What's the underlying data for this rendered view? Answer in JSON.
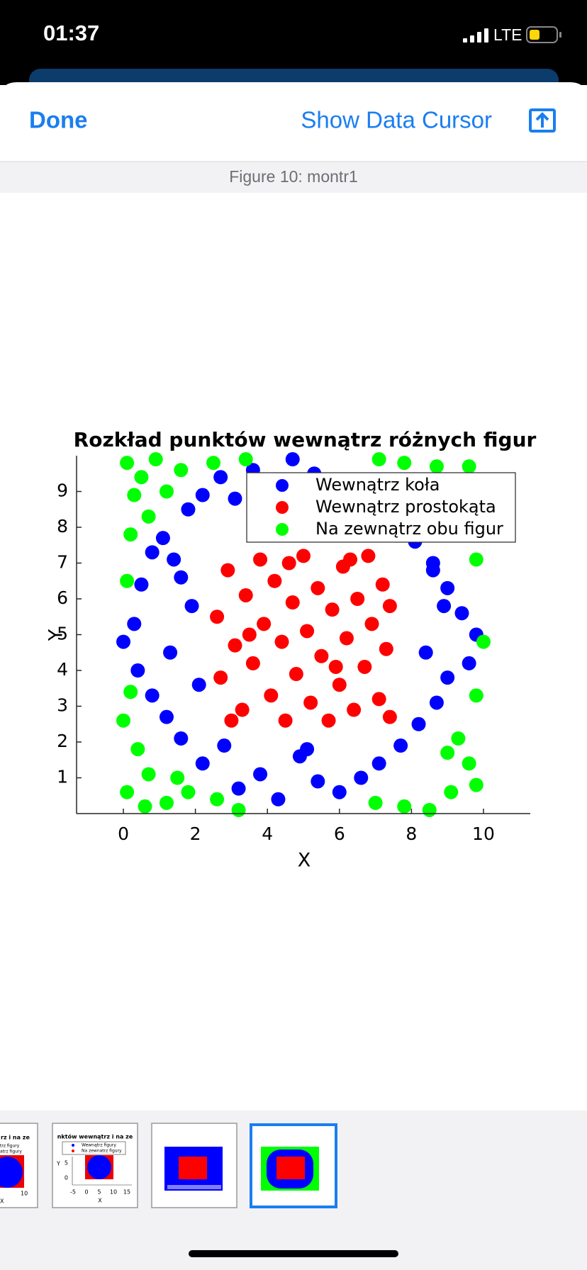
{
  "status_bar": {
    "time": "01:37",
    "network": "LTE"
  },
  "toolbar": {
    "done": "Done",
    "data_cursor": "Show Data Cursor"
  },
  "figure_title": "Figure 10: montr1",
  "chart_data": {
    "type": "scatter",
    "title": "Rozkład punktów wewnątrz różnych figur",
    "xlabel": "X",
    "ylabel": "Y",
    "xlim": [
      -1.3,
      11.3
    ],
    "ylim": [
      0,
      10
    ],
    "xticks": [
      0,
      2,
      4,
      6,
      8,
      10
    ],
    "yticks": [
      1,
      2,
      3,
      4,
      5,
      6,
      7,
      8,
      9
    ],
    "legend": "upper right",
    "series": [
      {
        "name": "Wewnątrz koła",
        "color": "#0000ff",
        "x": [
          0.0,
          0.3,
          0.5,
          0.8,
          1.1,
          1.4,
          1.8,
          2.2,
          2.7,
          3.1,
          3.6,
          4.2,
          4.7,
          5.3,
          5.9,
          6.4,
          7.0,
          7.6,
          8.1,
          8.6,
          9.0,
          9.4,
          9.8,
          9.6,
          9.0,
          8.7,
          8.2,
          7.7,
          7.1,
          6.6,
          6.0,
          5.4,
          4.9,
          4.3,
          3.8,
          3.2,
          2.8,
          2.2,
          1.6,
          1.2,
          0.8,
          0.4,
          1.3,
          1.9,
          1.6,
          2.1,
          8.4,
          8.9,
          8.6,
          5.1
        ],
        "values": [
          4.8,
          5.3,
          6.4,
          7.3,
          7.7,
          7.1,
          8.5,
          8.9,
          9.4,
          8.8,
          9.6,
          9.2,
          9.9,
          9.5,
          9.3,
          8.9,
          8.6,
          8.3,
          7.6,
          7.0,
          6.3,
          5.6,
          5.0,
          4.2,
          3.8,
          3.1,
          2.5,
          1.9,
          1.4,
          1.0,
          0.6,
          0.9,
          1.6,
          0.4,
          1.1,
          0.7,
          1.9,
          1.4,
          2.1,
          2.7,
          3.3,
          4.0,
          4.5,
          5.8,
          6.6,
          3.6,
          4.5,
          5.8,
          6.8,
          1.8
        ]
      },
      {
        "name": "Wewnątrz prostokąta",
        "color": "#ff0000",
        "x": [
          2.6,
          2.7,
          2.9,
          3.1,
          3.3,
          3.4,
          3.6,
          3.8,
          3.9,
          4.1,
          4.2,
          4.4,
          4.5,
          4.7,
          4.8,
          5.0,
          5.1,
          5.2,
          5.4,
          5.5,
          5.7,
          5.8,
          6.0,
          6.1,
          6.2,
          6.4,
          6.5,
          6.7,
          6.8,
          6.9,
          7.1,
          7.2,
          7.3,
          7.4,
          7.4,
          3.0,
          4.6,
          6.3,
          3.5,
          5.9
        ],
        "values": [
          5.5,
          3.8,
          6.8,
          4.7,
          2.9,
          6.1,
          4.2,
          7.1,
          5.3,
          3.3,
          6.5,
          4.8,
          2.6,
          5.9,
          3.9,
          7.2,
          5.1,
          3.1,
          6.3,
          4.4,
          2.6,
          5.7,
          3.6,
          6.9,
          4.9,
          2.9,
          6.0,
          4.1,
          7.2,
          5.3,
          3.2,
          6.4,
          4.6,
          2.7,
          5.8,
          2.6,
          7.0,
          7.1,
          5.0,
          4.1
        ]
      },
      {
        "name": "Na zewnątrz obu figur",
        "color": "#00ff00",
        "x": [
          0.1,
          0.5,
          0.9,
          0.3,
          1.2,
          0.7,
          0.2,
          1.6,
          2.5,
          3.4,
          0.1,
          0.2,
          0.0,
          0.4,
          0.7,
          0.1,
          0.6,
          1.2,
          1.8,
          2.6,
          3.2,
          7.0,
          7.8,
          8.5,
          9.1,
          9.8,
          9.6,
          9.3,
          9.8,
          10.0,
          9.8,
          9.3,
          9.6,
          8.7,
          7.8,
          7.1,
          8.3,
          9.0,
          1.5
        ],
        "values": [
          9.8,
          9.4,
          9.9,
          8.9,
          9.0,
          8.3,
          7.8,
          9.6,
          9.8,
          9.9,
          6.5,
          3.4,
          2.6,
          1.8,
          1.1,
          0.6,
          0.2,
          0.3,
          0.6,
          0.4,
          0.1,
          0.3,
          0.2,
          0.1,
          0.6,
          0.8,
          1.4,
          2.1,
          3.3,
          4.8,
          7.1,
          8.3,
          9.7,
          9.7,
          9.8,
          9.9,
          9.2,
          1.7,
          1.0
        ]
      }
    ]
  },
  "thumbnails": [
    {
      "title": "rz i na ze",
      "legend": [
        "trz figury",
        "atrz figury"
      ],
      "xtick": "10",
      "xlabel": "X"
    },
    {
      "title": "nktów wewnątrz i na ze",
      "legend": [
        "Wewnątrz figury",
        "Na zewnatrz figury"
      ],
      "xticks": [
        "-5",
        "0",
        "5",
        "10",
        "15"
      ],
      "yticks": [
        "5",
        "0"
      ],
      "xlabel": "X",
      "ylabel": "Y"
    }
  ]
}
